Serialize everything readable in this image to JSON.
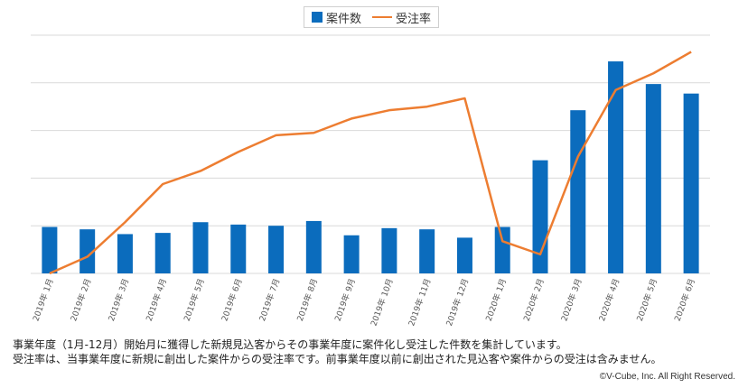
{
  "chart_data": {
    "type": "bar+line",
    "categories": [
      "2019年 1月",
      "2019年 2月",
      "2019年 3月",
      "2019年 4月",
      "2019年 5月",
      "2019年 6月",
      "2019年 7月",
      "2019年 8月",
      "2019年 9月",
      "2019年 10月",
      "2019年 11月",
      "2019年 12月",
      "2020年 1月",
      "2020年 2月",
      "2020年 3月",
      "2020年 4月",
      "2020年 5月",
      "2020年 6月"
    ],
    "series": [
      {
        "name": "案件数",
        "kind": "bar",
        "color": "#0b6cbd",
        "values": [
          19.5,
          18.5,
          16.5,
          17,
          21.5,
          20.5,
          20,
          22,
          16,
          19,
          18.5,
          15,
          19.5,
          47.5,
          68.5,
          89,
          79.5,
          75.5
        ]
      },
      {
        "name": "受注率",
        "kind": "line",
        "color": "#ed7d31",
        "values": [
          0,
          7,
          21.5,
          37.5,
          43,
          51,
          58,
          59,
          65,
          68.5,
          70,
          73.5,
          13.5,
          8,
          49,
          77,
          84,
          93
        ]
      }
    ],
    "ylim": [
      0,
      100
    ],
    "gridlines": [
      0,
      20,
      40,
      60,
      80,
      100
    ],
    "grid": true,
    "y_tick_labels": "hidden",
    "legend_position": "top-center"
  },
  "notes": [
    "事業年度（1月-12月）開始月に獲得した新規見込客からその事業年度に案件化し受注した件数を集計しています。",
    "受注率は、当事業年度に新規に創出した案件からの受注率です。前事業年度以前に創出された見込客や案件からの受注は含みません。"
  ],
  "copyright": "©V-Cube, Inc. All Right Reserved."
}
